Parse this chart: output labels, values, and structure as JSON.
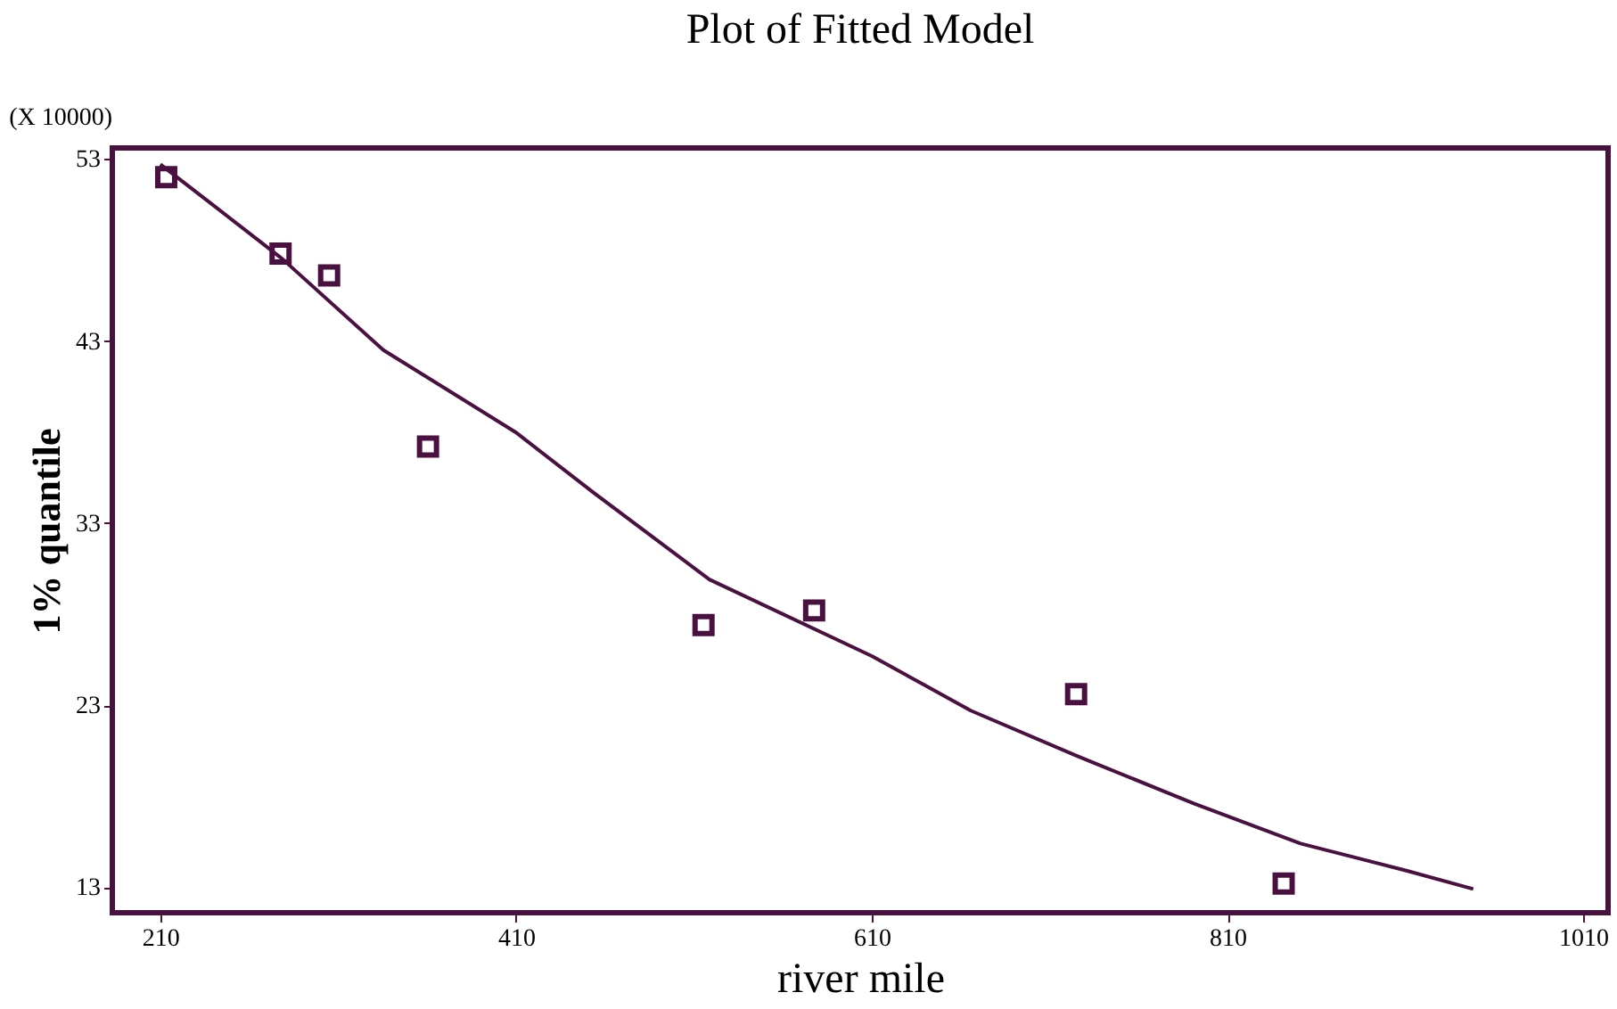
{
  "chart_data": {
    "type": "scatter",
    "title": "Plot of Fitted Model",
    "xlabel": "river mile",
    "ylabel": "1% quantile",
    "annotations": [
      "(X 10000)"
    ],
    "xlim": [
      183,
      1024
    ],
    "xticks": [
      210,
      410,
      610,
      810,
      1010
    ],
    "ylim": [
      11.6,
      53.6
    ],
    "yticks": [
      13,
      23,
      33,
      43,
      53
    ],
    "grid": false,
    "series": [
      {
        "color": "#4a1040",
        "marker": "square",
        "x": [
          213.3,
          277.6,
          304.9,
          360.5,
          515.4,
          577.6,
          724.9,
          841.6
        ],
        "values": [
          52.0,
          47.8,
          46.6,
          37.2,
          27.4,
          28.2,
          23.6,
          13.2
        ]
      },
      {
        "type": "line",
        "color": "#4a1040",
        "line_style": "solid",
        "x": [
          210,
          240.5,
          278.7,
          335.4,
          409.6,
          453.2,
          518.7,
          610,
          665.7,
          725.7,
          791,
          851.1,
          911,
          948.2
        ],
        "values": [
          52.7,
          50.4,
          47.5,
          42.5,
          38.0,
          34.7,
          29.9,
          25.7,
          22.7,
          20.2,
          17.6,
          15.4,
          13.9,
          12.9
        ]
      }
    ]
  }
}
